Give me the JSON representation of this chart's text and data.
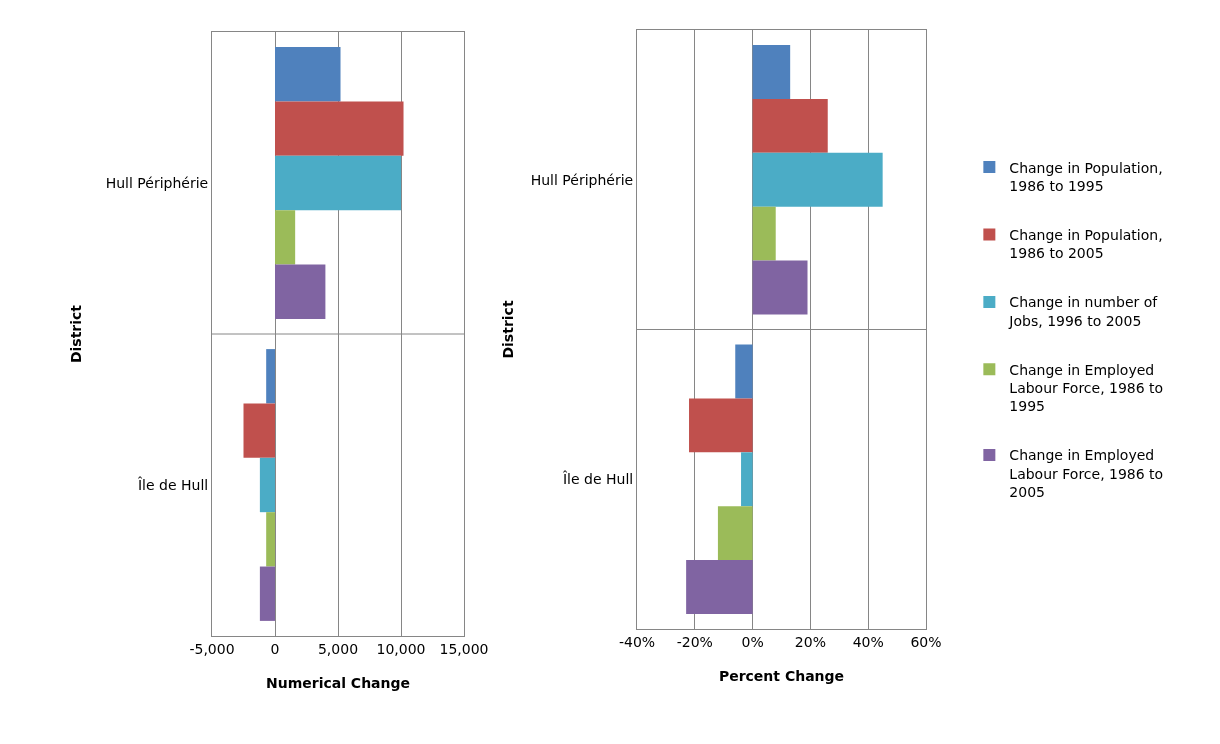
{
  "chart_data": [
    {
      "type": "bar",
      "orientation": "horizontal",
      "categories": [
        "Hull Périphérie",
        "Île de Hull"
      ],
      "xlabel": "Numerical Change",
      "ylabel": "District",
      "series": [
        {
          "color": "#4f81bd",
          "values": [
            5200,
            -700
          ]
        },
        {
          "color": "#c0504d",
          "values": [
            10200,
            -2500
          ]
        },
        {
          "color": "#4bacc6",
          "values": [
            10000,
            -1200
          ]
        },
        {
          "color": "#9bbb59",
          "values": [
            1600,
            -700
          ]
        },
        {
          "color": "#8064a2",
          "values": [
            4000,
            -1200
          ]
        }
      ],
      "xlim": [
        -5000,
        15000
      ],
      "xticks": [
        {
          "value": -5000,
          "label": "-5,000"
        },
        0,
        {
          "value": 5000,
          "label": "5,000"
        },
        {
          "value": 10000,
          "label": "10,000"
        },
        {
          "value": 15000,
          "label": "15,000"
        }
      ],
      "grid": true,
      "legend": false
    },
    {
      "type": "bar",
      "orientation": "horizontal",
      "categories": [
        "Hull Périphérie",
        "Île de Hull"
      ],
      "xlabel": "Percent Change",
      "ylabel": "District",
      "series": [
        {
          "name": "Change in Population, 1986 to 1995",
          "color": "#4f81bd",
          "values": [
            13,
            -6
          ]
        },
        {
          "name": "Change in Population, 1986 to 2005",
          "color": "#c0504d",
          "values": [
            26,
            -22
          ]
        },
        {
          "name": "Change in number of Jobs, 1996 to 2005",
          "color": "#4bacc6",
          "values": [
            45,
            -4
          ]
        },
        {
          "name": "Change in Employed Labour Force, 1986 to 1995",
          "color": "#9bbb59",
          "values": [
            8,
            -12
          ]
        },
        {
          "name": "Change in Employed Labour Force, 1986 to 2005",
          "color": "#8064a2",
          "values": [
            19,
            -23
          ]
        }
      ],
      "xlim": [
        -40,
        60
      ],
      "xticks": [
        {
          "value": -40,
          "label": "-40%"
        },
        {
          "value": -20,
          "label": "-20%"
        },
        {
          "value": 0,
          "label": "0%"
        },
        {
          "value": 20,
          "label": "20%"
        },
        {
          "value": 40,
          "label": "40%"
        },
        {
          "value": 60,
          "label": "60%"
        }
      ],
      "grid": true,
      "legend": "right"
    }
  ]
}
